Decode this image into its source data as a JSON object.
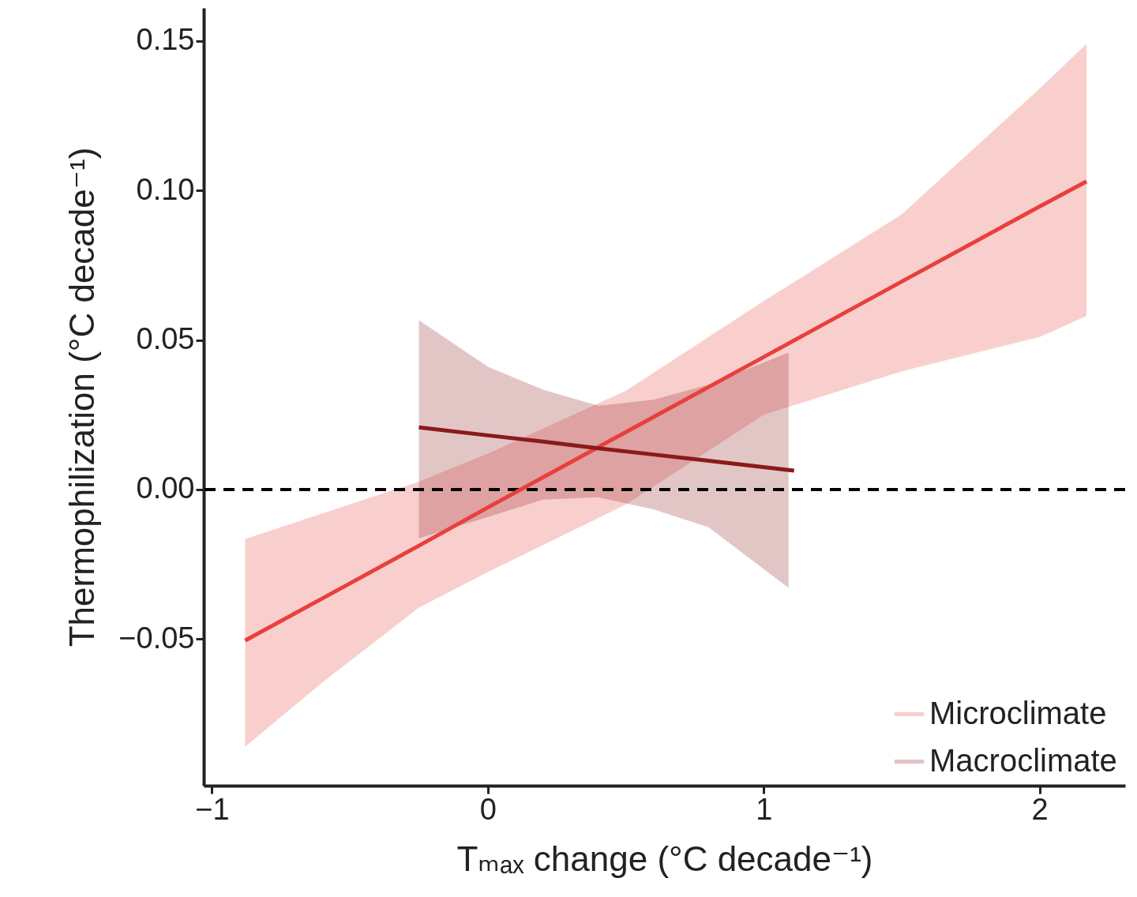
{
  "chart_data": {
    "type": "line",
    "xlabel": "Tₘₐₓ change (°C decade⁻¹)",
    "ylabel": "Thermophilization (°C decade⁻¹)",
    "xlim": [
      -1.03,
      2.31
    ],
    "ylim": [
      -0.099,
      0.161
    ],
    "xticks": [
      {
        "value": -1,
        "label": "−1"
      },
      0,
      1,
      2
    ],
    "yticks": [
      {
        "value": -0.05,
        "label": "−0.05"
      },
      {
        "value": 0,
        "label": "0.00"
      },
      0.05,
      {
        "value": 0.1,
        "label": "0.10"
      },
      0.15
    ],
    "grid": false,
    "legend": "bottom right",
    "marker": "none",
    "line_style": "solid",
    "ref_lines": [
      {
        "axis": "y",
        "value": 0,
        "label": null,
        "color": "#000000",
        "line_style": "dashed"
      }
    ],
    "series": [
      {
        "name": "Microclimate",
        "color": "#e8403c",
        "x": [
          -0.88,
          -0.6,
          -0.25,
          0,
          0.5,
          1.0,
          1.5,
          2.0,
          2.17
        ],
        "values": [
          -0.0505,
          -0.0364,
          -0.0188,
          -0.006,
          0.0192,
          0.0443,
          0.0695,
          0.0946,
          0.103
        ],
        "lower": [
          -0.086,
          -0.0645,
          -0.0395,
          -0.0276,
          -0.005,
          0.025,
          0.0395,
          0.051,
          0.058
        ],
        "upper": [
          -0.0166,
          -0.008,
          0.0026,
          0.012,
          0.033,
          0.063,
          0.092,
          0.134,
          0.149
        ]
      },
      {
        "name": "Macroclimate",
        "color": "#8b1a1a",
        "x": [
          -0.25,
          0,
          0.2,
          0.4,
          0.6,
          0.8,
          1.09,
          1.11
        ],
        "values": [
          0.0208,
          0.0181,
          0.016,
          0.0138,
          0.0117,
          0.0096,
          0.0065,
          0.0063
        ],
        "lower": [
          -0.0163,
          -0.0092,
          -0.0034,
          -0.0026,
          -0.0066,
          -0.0126,
          -0.0329,
          null
        ],
        "upper": [
          0.0566,
          0.041,
          0.0334,
          0.028,
          0.03,
          0.035,
          0.0458,
          null
        ]
      }
    ]
  }
}
